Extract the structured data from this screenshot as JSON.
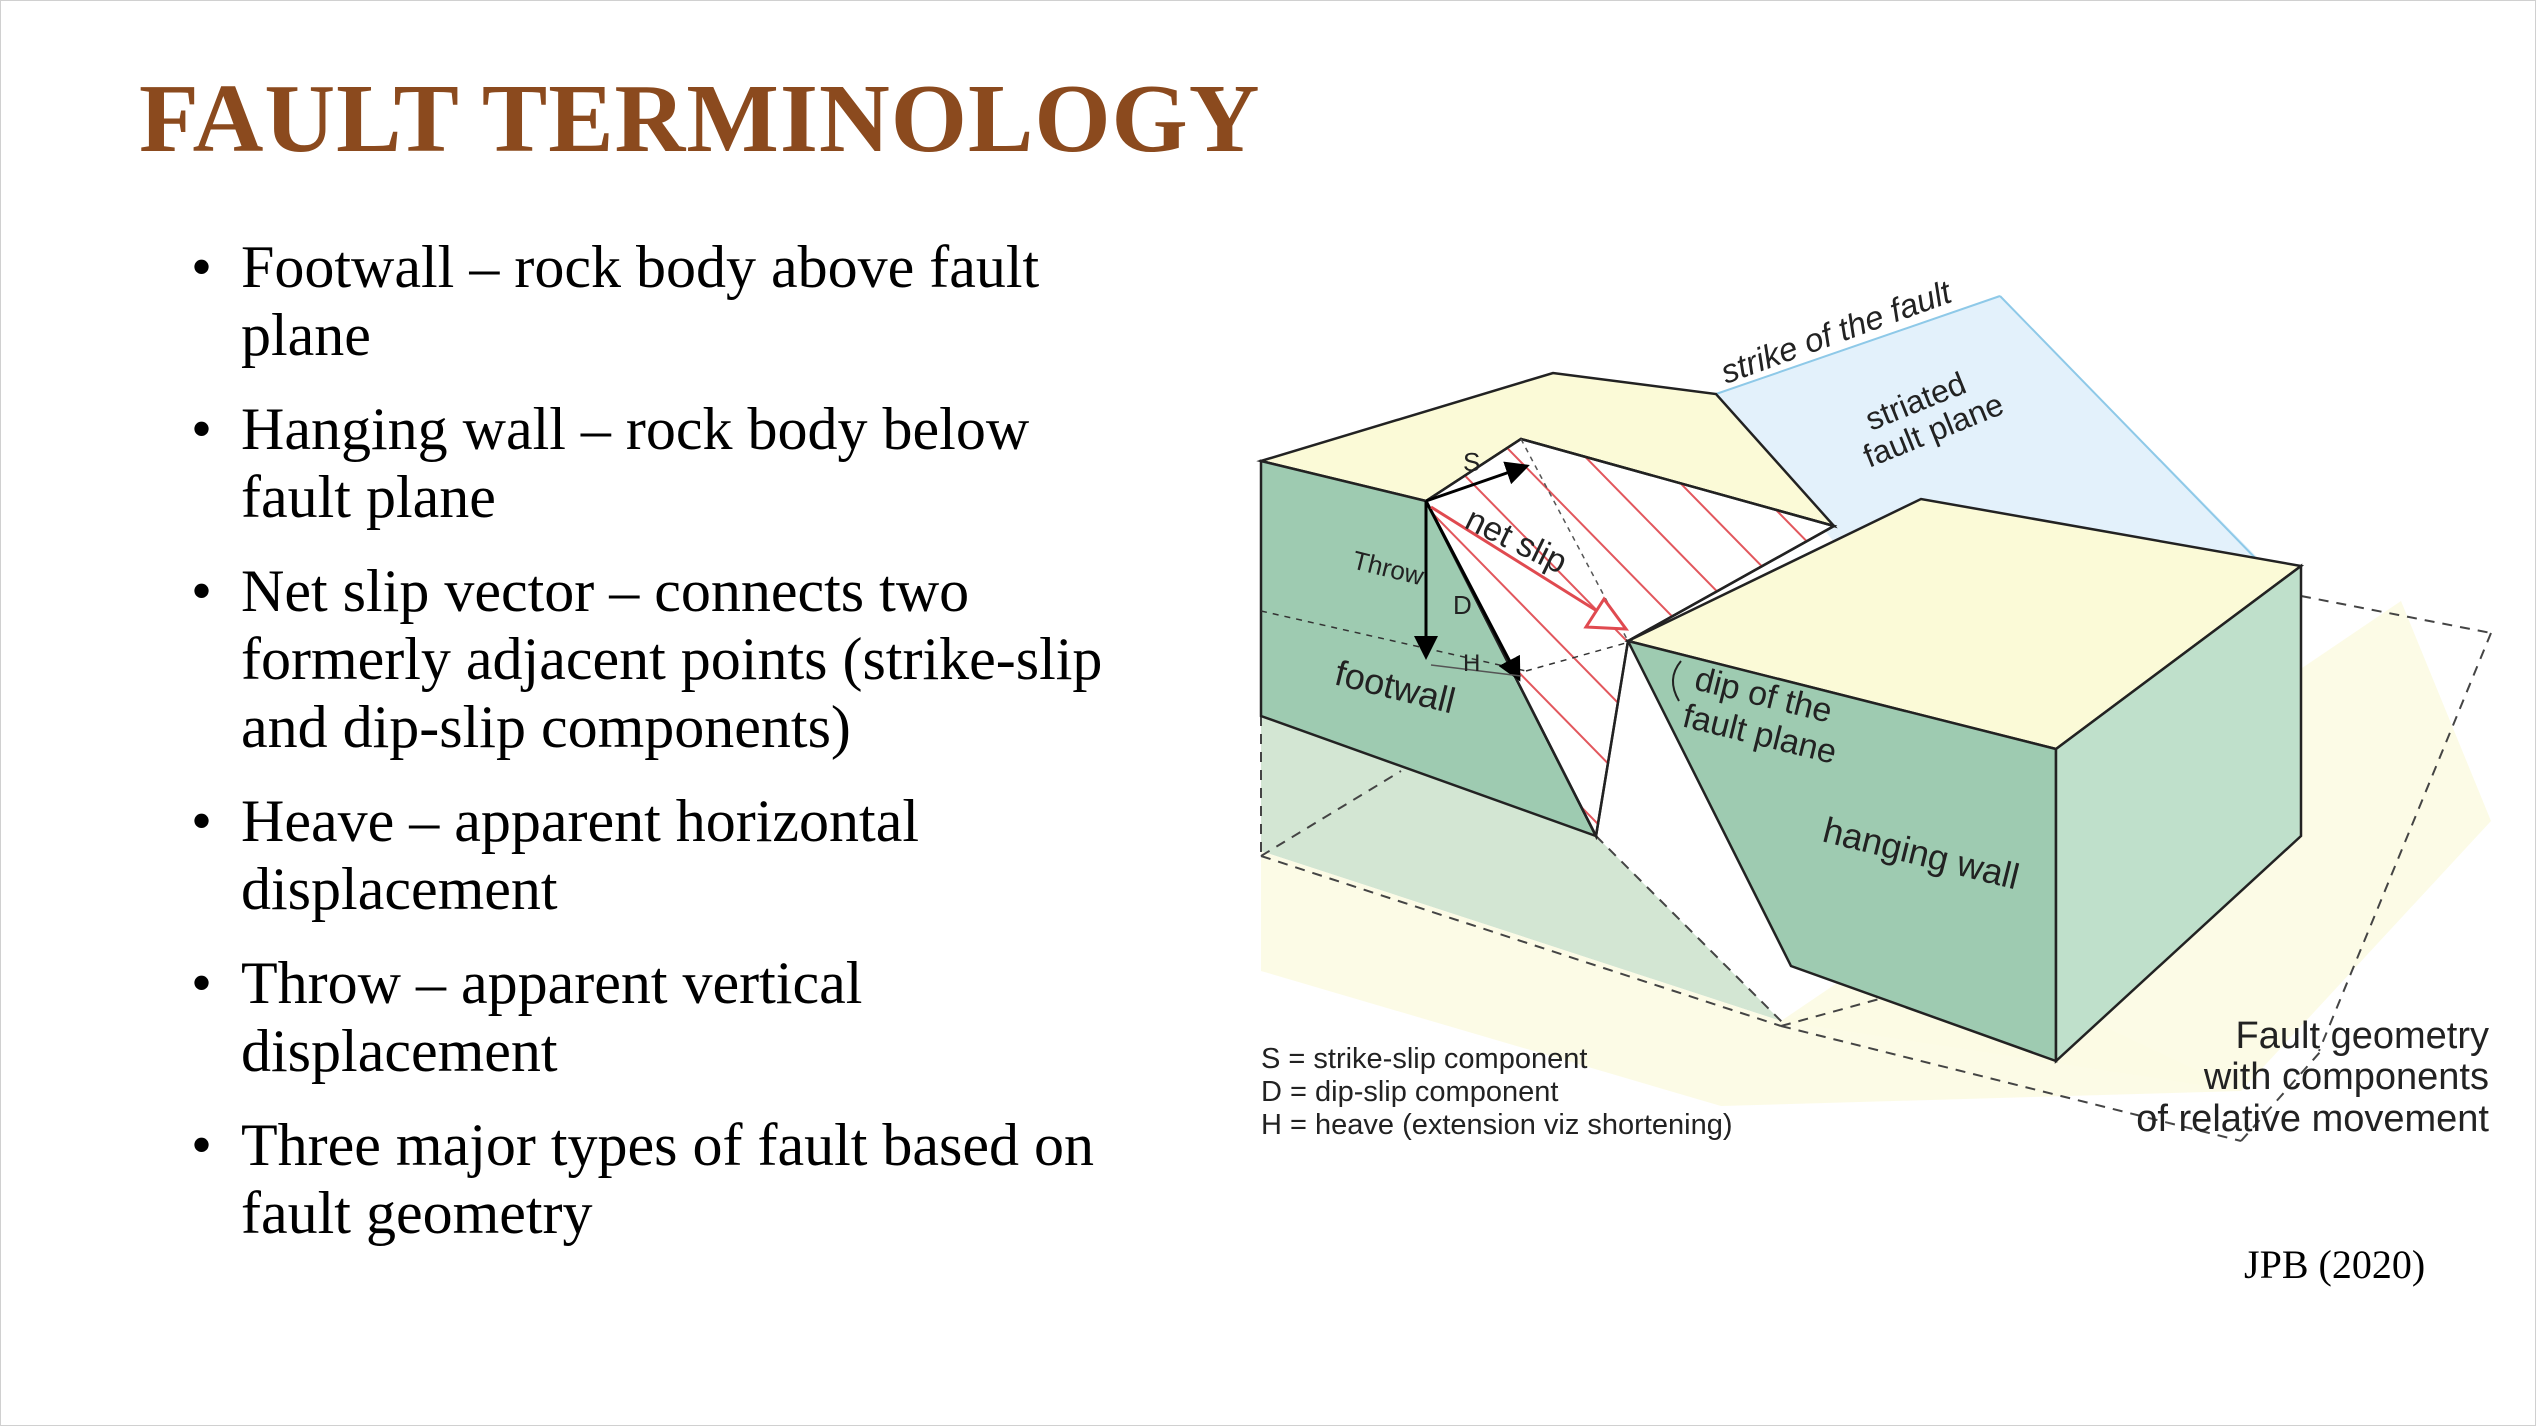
{
  "slide": {
    "title": "FAULT TERMINOLOGY",
    "bullets": [
      {
        "line1": "Footwall – rock body above fault",
        "line2": "plane"
      },
      {
        "line1": "Hanging wall – rock body below",
        "line2": "fault plane"
      },
      {
        "line1": "Net slip vector – connects two",
        "line2": "formerly adjacent points (strike-slip",
        "line3": "and dip-slip components)"
      },
      {
        "line1": "Heave – apparent horizontal",
        "line2": "displacement"
      },
      {
        "line1": "Throw – apparent vertical",
        "line2": "displacement"
      },
      {
        "line1": "Three major types of fault based on",
        "line2": "fault geometry"
      }
    ],
    "bullet_glyph": "•",
    "credit": "JPB (2020)"
  },
  "diagram": {
    "labels": {
      "strike": "strike of the fault",
      "striated_1": "striated",
      "striated_2": "fault plane",
      "s": "S",
      "net_slip": "net slip",
      "throw": "Throw",
      "d": "D",
      "h": "H",
      "footwall": "footwall",
      "dip_1": "dip of the",
      "dip_2": "fault plane",
      "hanging_wall": "hanging wall"
    },
    "legend": [
      "S = strike-slip component",
      "D = dip-slip component",
      "H = heave (extension viz shortening)"
    ],
    "caption": [
      "Fault geometry",
      "with components",
      "of relative movement"
    ],
    "colors": {
      "top_surface": "#fbfad7",
      "block_side": "#9ecbb1",
      "block_side_light": "#bfe0cb",
      "sky_plane": "#e3f1fb",
      "sky_edge": "#8ec9e8",
      "ghost": "#cfe3cf",
      "hatch": "#e2575d",
      "net_slip_arrow": "#e04a50",
      "title_color": "#8b4a1e"
    }
  }
}
